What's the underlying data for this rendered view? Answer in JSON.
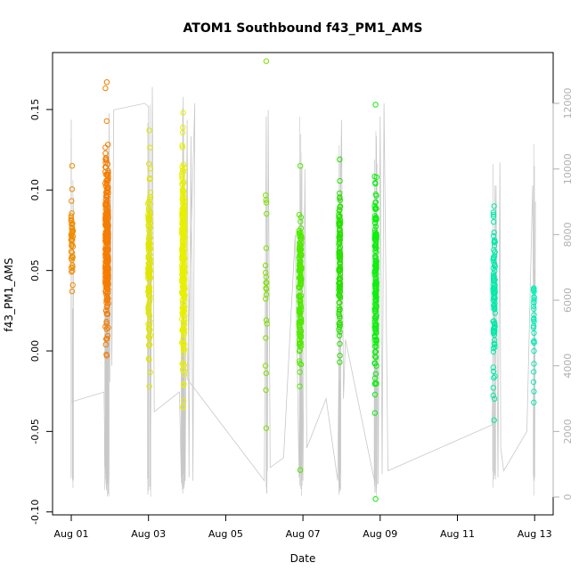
{
  "chart_data": {
    "type": "scatter",
    "title": "ATOM1 Southbound f43_PM1_AMS",
    "xlabel": "Date",
    "ylabel": "f43_PM1_AMS",
    "xlim": [
      0.0,
      12.6
    ],
    "ylim": [
      -0.1,
      0.18
    ],
    "y2lim": [
      0,
      12000
    ],
    "x_ticks": [
      0,
      2,
      4,
      6,
      8,
      10,
      12
    ],
    "x_tick_labels": [
      "Aug 01",
      "Aug 03",
      "Aug 05",
      "Aug 07",
      "Aug 09",
      "Aug 11",
      "Aug 13"
    ],
    "y_ticks": [
      -0.1,
      -0.05,
      0.0,
      0.05,
      0.1,
      0.15
    ],
    "y_tick_labels": [
      "-0.10",
      "-0.05",
      "0.00",
      "0.05",
      "0.10",
      "0.15"
    ],
    "y2_ticks": [
      0,
      2000,
      4000,
      6000,
      8000,
      10000,
      12000
    ],
    "y2_tick_labels": [
      "0",
      "2000",
      "4000",
      "6000",
      "8000",
      "10000",
      "12000"
    ],
    "grid": false,
    "colors": {
      "line": "#c8c8c8",
      "axis": "#000000",
      "right_axis": "#b0b0b0",
      "bursts": [
        "#f08c00",
        "#f57d00",
        "#e0e600",
        "#e8f000",
        "#80e000",
        "#50ea00",
        "#28e000",
        "#10ee10",
        "#00eaa8",
        "#00f0b8"
      ]
    },
    "bursts": [
      {
        "center": 0.02,
        "spread": 0.05,
        "y_mean": 0.07,
        "y_sd": 0.012,
        "y_min": 0.037,
        "y_max": 0.115,
        "n": 45
      },
      {
        "center": 0.92,
        "spread": 0.08,
        "y_mean": 0.068,
        "y_sd": 0.025,
        "y_min": -0.003,
        "y_max": 0.167,
        "n": 260
      },
      {
        "center": 2.02,
        "spread": 0.06,
        "y_mean": 0.05,
        "y_sd": 0.03,
        "y_min": -0.022,
        "y_max": 0.137,
        "n": 130
      },
      {
        "center": 2.9,
        "spread": 0.07,
        "y_mean": 0.055,
        "y_sd": 0.03,
        "y_min": -0.035,
        "y_max": 0.148,
        "n": 260
      },
      {
        "center": 5.05,
        "spread": 0.04,
        "y_mean": 0.03,
        "y_sd": 0.04,
        "y_min": -0.048,
        "y_max": 0.18,
        "n": 20
      },
      {
        "center": 5.93,
        "spread": 0.06,
        "y_mean": 0.04,
        "y_sd": 0.025,
        "y_min": -0.074,
        "y_max": 0.115,
        "n": 150
      },
      {
        "center": 6.95,
        "spread": 0.04,
        "y_mean": 0.05,
        "y_sd": 0.025,
        "y_min": -0.007,
        "y_max": 0.119,
        "n": 120
      },
      {
        "center": 7.88,
        "spread": 0.05,
        "y_mean": 0.04,
        "y_sd": 0.03,
        "y_min": -0.092,
        "y_max": 0.153,
        "n": 170
      },
      {
        "center": 10.95,
        "spread": 0.05,
        "y_mean": 0.03,
        "y_sd": 0.025,
        "y_min": -0.043,
        "y_max": 0.09,
        "n": 90
      },
      {
        "center": 11.98,
        "spread": 0.02,
        "y_mean": 0.015,
        "y_sd": 0.02,
        "y_min": -0.032,
        "y_max": 0.039,
        "n": 25
      }
    ],
    "gray_series": {
      "axis": "right",
      "points": [
        [
          0.0,
          11500
        ],
        [
          0.0,
          2900
        ],
        [
          0.85,
          3200
        ],
        [
          0.88,
          900
        ],
        [
          0.9,
          8000
        ],
        [
          0.95,
          500
        ],
        [
          0.98,
          11700
        ],
        [
          1.0,
          3500
        ],
        [
          1.02,
          10000
        ],
        [
          1.05,
          4000
        ],
        [
          1.1,
          11800
        ],
        [
          1.9,
          12000
        ],
        [
          2.0,
          11900
        ],
        [
          2.05,
          500
        ],
        [
          2.1,
          12500
        ],
        [
          2.15,
          2600
        ],
        [
          2.8,
          3200
        ],
        [
          2.85,
          600
        ],
        [
          2.9,
          12200
        ],
        [
          2.95,
          500
        ],
        [
          3.0,
          11500
        ],
        [
          3.05,
          600
        ],
        [
          3.1,
          11000
        ],
        [
          3.15,
          500
        ],
        [
          3.2,
          12000
        ],
        [
          3.0,
          3600
        ],
        [
          5.0,
          500
        ],
        [
          5.05,
          11600
        ],
        [
          5.08,
          800
        ],
        [
          5.1,
          11800
        ],
        [
          5.15,
          900
        ],
        [
          5.5,
          1200
        ],
        [
          5.8,
          8000
        ],
        [
          5.9,
          600
        ],
        [
          5.95,
          10500
        ],
        [
          6.0,
          500
        ],
        [
          6.05,
          10000
        ],
        [
          6.1,
          1500
        ],
        [
          6.6,
          3000
        ],
        [
          6.9,
          500
        ],
        [
          7.0,
          11500
        ],
        [
          7.05,
          3000
        ],
        [
          7.1,
          4800
        ],
        [
          7.85,
          500
        ],
        [
          7.9,
          11000
        ],
        [
          7.95,
          400
        ],
        [
          8.0,
          11600
        ],
        [
          8.05,
          700
        ],
        [
          8.1,
          12000
        ],
        [
          8.2,
          800
        ],
        [
          10.9,
          2200
        ],
        [
          11.0,
          9500
        ],
        [
          11.05,
          600
        ],
        [
          11.1,
          10200
        ],
        [
          11.12,
          1500
        ],
        [
          11.2,
          800
        ],
        [
          11.8,
          2000
        ],
        [
          11.95,
          9500
        ],
        [
          12.0,
          600
        ],
        [
          12.02,
          9000
        ]
      ]
    }
  }
}
